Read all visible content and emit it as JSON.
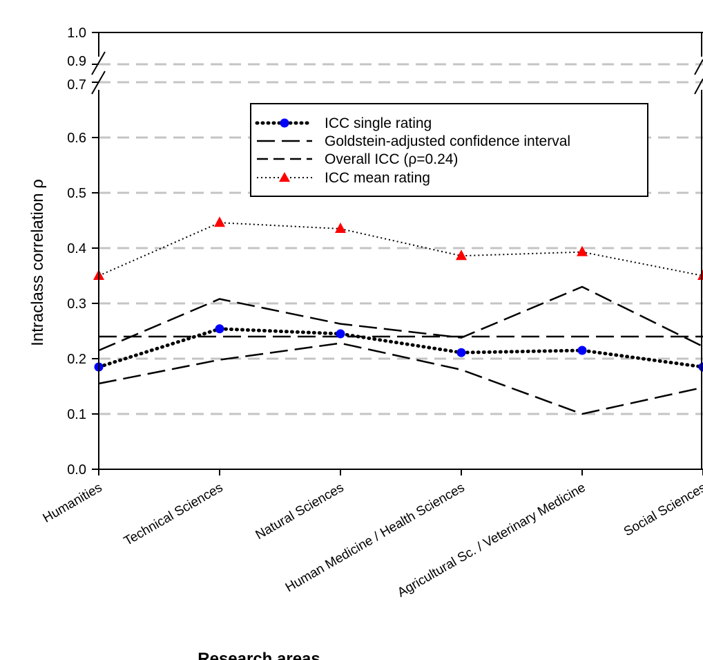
{
  "chart_data": {
    "type": "line",
    "title": "",
    "xlabel": "Research areas",
    "ylabel": "Intraclass correlation ρ",
    "ylim": [
      0.0,
      1.0
    ],
    "axis_break": [
      0.7,
      0.9
    ],
    "y_ticks": [
      "0.0",
      "0.1",
      "0.2",
      "0.3",
      "0.4",
      "0.5",
      "0.6",
      "0.7",
      "0.9",
      "1.0"
    ],
    "grid": "horizontal dashed gray",
    "legend_position": "top-center",
    "categories": [
      "Humanities",
      "Technical Sciences",
      "Natural Sciences",
      "Human Medicine / Health Sciences",
      "Agricultural Sc. / Veterinary Medicine",
      "Social Sciences"
    ],
    "series": [
      {
        "name": "ICC single rating",
        "values": [
          0.185,
          0.254,
          0.245,
          0.211,
          0.215,
          0.185
        ],
        "style": "dotted-thick",
        "marker": "circle",
        "marker_color": "#0000ff"
      },
      {
        "name": "Goldstein-adjusted confidence interval",
        "upper": [
          0.215,
          0.308,
          0.263,
          0.238,
          0.33,
          0.222
        ],
        "lower": [
          0.155,
          0.198,
          0.228,
          0.18,
          0.1,
          0.148
        ],
        "style": "long-dash"
      },
      {
        "name": "Overall ICC (ρ=0.24)",
        "value": 0.24,
        "style": "short-dash"
      },
      {
        "name": "ICC mean rating",
        "values": [
          0.35,
          0.446,
          0.435,
          0.386,
          0.393,
          0.35
        ],
        "style": "dotted-thin",
        "marker": "triangle",
        "marker_color": "#ff0000"
      }
    ]
  }
}
